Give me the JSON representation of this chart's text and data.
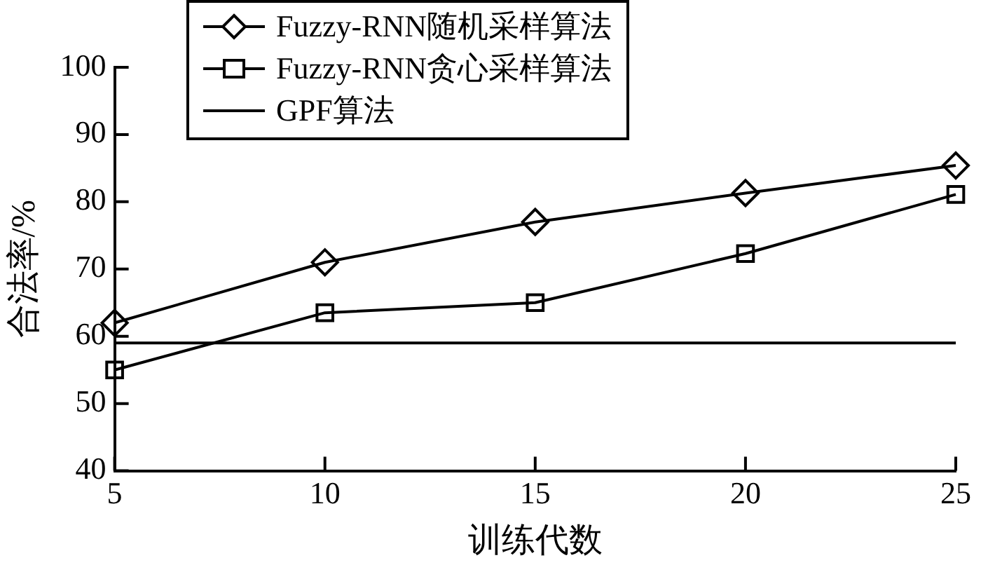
{
  "chart_data": {
    "type": "line",
    "xlabel": "训练代数",
    "ylabel": "合法率/%",
    "x": [
      5,
      10,
      15,
      20,
      25
    ],
    "xlim": [
      5,
      25
    ],
    "xticks": [
      5,
      10,
      15,
      20,
      25
    ],
    "ylim": [
      40,
      100
    ],
    "yticks": [
      40,
      50,
      60,
      70,
      80,
      90,
      100
    ],
    "grid": false,
    "legend": "top",
    "line_style": "solid",
    "series": [
      {
        "name": "Fuzzy-RNN随机采样算法",
        "color": "#000000",
        "marker": "diamond",
        "values": [
          62,
          71,
          77,
          81.3,
          85.4
        ]
      },
      {
        "name": "Fuzzy-RNN贪心采样算法",
        "color": "#000000",
        "marker": "square",
        "values": [
          55,
          63.5,
          65,
          72.3,
          81.1
        ]
      },
      {
        "name": "GPF算法",
        "color": "#000000",
        "marker": "none",
        "values": [
          59,
          59,
          59,
          59,
          59
        ]
      }
    ]
  }
}
